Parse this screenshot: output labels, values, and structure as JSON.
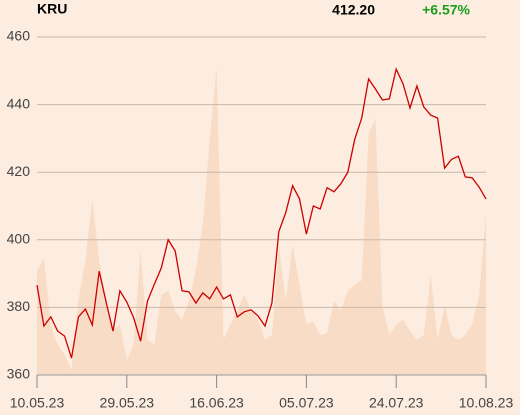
{
  "header": {
    "symbol": "KRU",
    "price": "412.20",
    "change": "+6.57%"
  },
  "chart_data": {
    "type": "line",
    "categories": [
      "10.05.23",
      null,
      null,
      null,
      null,
      null,
      null,
      null,
      null,
      null,
      null,
      null,
      null,
      "29.05.23",
      null,
      null,
      null,
      null,
      null,
      null,
      null,
      null,
      null,
      null,
      null,
      null,
      "16.06.23",
      null,
      null,
      null,
      null,
      null,
      null,
      null,
      null,
      null,
      null,
      null,
      null,
      "05.07.23",
      null,
      null,
      null,
      null,
      null,
      null,
      null,
      null,
      null,
      null,
      null,
      null,
      "24.07.23",
      null,
      null,
      null,
      null,
      null,
      null,
      null,
      null,
      null,
      null,
      null,
      null,
      "10.08.23"
    ],
    "series": [
      {
        "color": "#cc0000",
        "values": [
          386.6,
          374.5,
          377.2,
          373,
          371.5,
          365,
          377.2,
          379.5,
          374.8,
          390.7,
          381.6,
          373,
          384.9,
          381.6,
          376.9,
          370,
          381.9,
          386.9,
          391.7,
          400,
          396.7,
          384.9,
          384.6,
          381.3,
          384.3,
          382.5,
          386,
          382.5,
          383.7,
          377.2,
          378.7,
          379.3,
          377.5,
          374.5,
          381.3,
          402.4,
          408,
          416,
          412.1,
          401.7,
          410,
          409.1,
          415.4,
          414.2,
          416.6,
          420,
          429.8,
          436,
          447.6,
          444.6,
          441.4,
          441.7,
          450.5,
          446.1,
          439,
          445.5,
          439.3,
          436.9,
          436,
          421.2,
          423.8,
          424.7,
          418.6,
          418.3,
          415.6,
          412.1
        ]
      }
    ],
    "background_area": {
      "color": "#f8dcc6",
      "values": [
        391,
        394.6,
        374.8,
        369,
        366,
        361.5,
        382,
        394,
        411.8,
        394,
        382,
        373,
        375,
        364.4,
        369,
        397,
        370.4,
        369,
        383.7,
        385,
        379,
        376.3,
        382,
        391,
        404.4,
        429.5,
        451,
        370.4,
        375,
        379,
        383.7,
        379,
        376.3,
        370.4,
        371.8,
        398.5,
        382,
        398.5,
        386.6,
        375,
        375.9,
        371.8,
        372.4,
        382,
        379,
        385,
        386.6,
        388,
        431,
        436,
        380.7,
        371.8,
        375,
        376.3,
        373,
        370.4,
        371.8,
        389.6,
        370.4,
        380.7,
        371.8,
        370.4,
        371.8,
        375,
        383.7,
        407.7
      ]
    },
    "ylim": [
      360,
      460
    ],
    "yticks": [
      360,
      380,
      400,
      420,
      440,
      460
    ],
    "grid": true
  }
}
